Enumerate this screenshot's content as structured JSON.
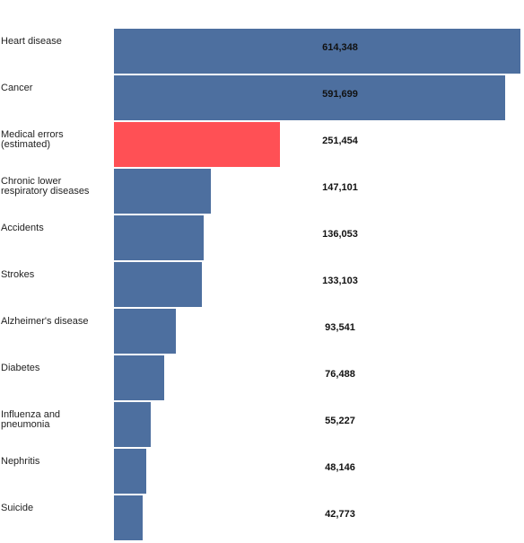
{
  "colors": {
    "default_bar": "#4d6f9f",
    "highlight_bar": "#ff5055"
  },
  "chart_data": {
    "type": "bar",
    "orientation": "horizontal",
    "grid": false,
    "legend": "none",
    "xlim": [
      0,
      614348
    ],
    "categories": [
      "Heart disease",
      "Cancer",
      "Medical errors (estimated)",
      "Chronic lower respiratory diseases",
      "Accidents",
      "Strokes",
      "Alzheimer's disease",
      "Diabetes",
      "Influenza and pneumonia",
      "Nephritis",
      "Suicide"
    ],
    "values": [
      614348,
      591699,
      251454,
      147101,
      136053,
      133103,
      93541,
      76488,
      55227,
      48146,
      42773
    ],
    "value_labels": [
      "614,348",
      "591,699",
      "251,454",
      "147,101",
      "136,053",
      "133,103",
      "93,541",
      "76,488",
      "55,227",
      "48,146",
      "42,773"
    ],
    "highlight": [
      "Medical errors (estimated)"
    ]
  }
}
